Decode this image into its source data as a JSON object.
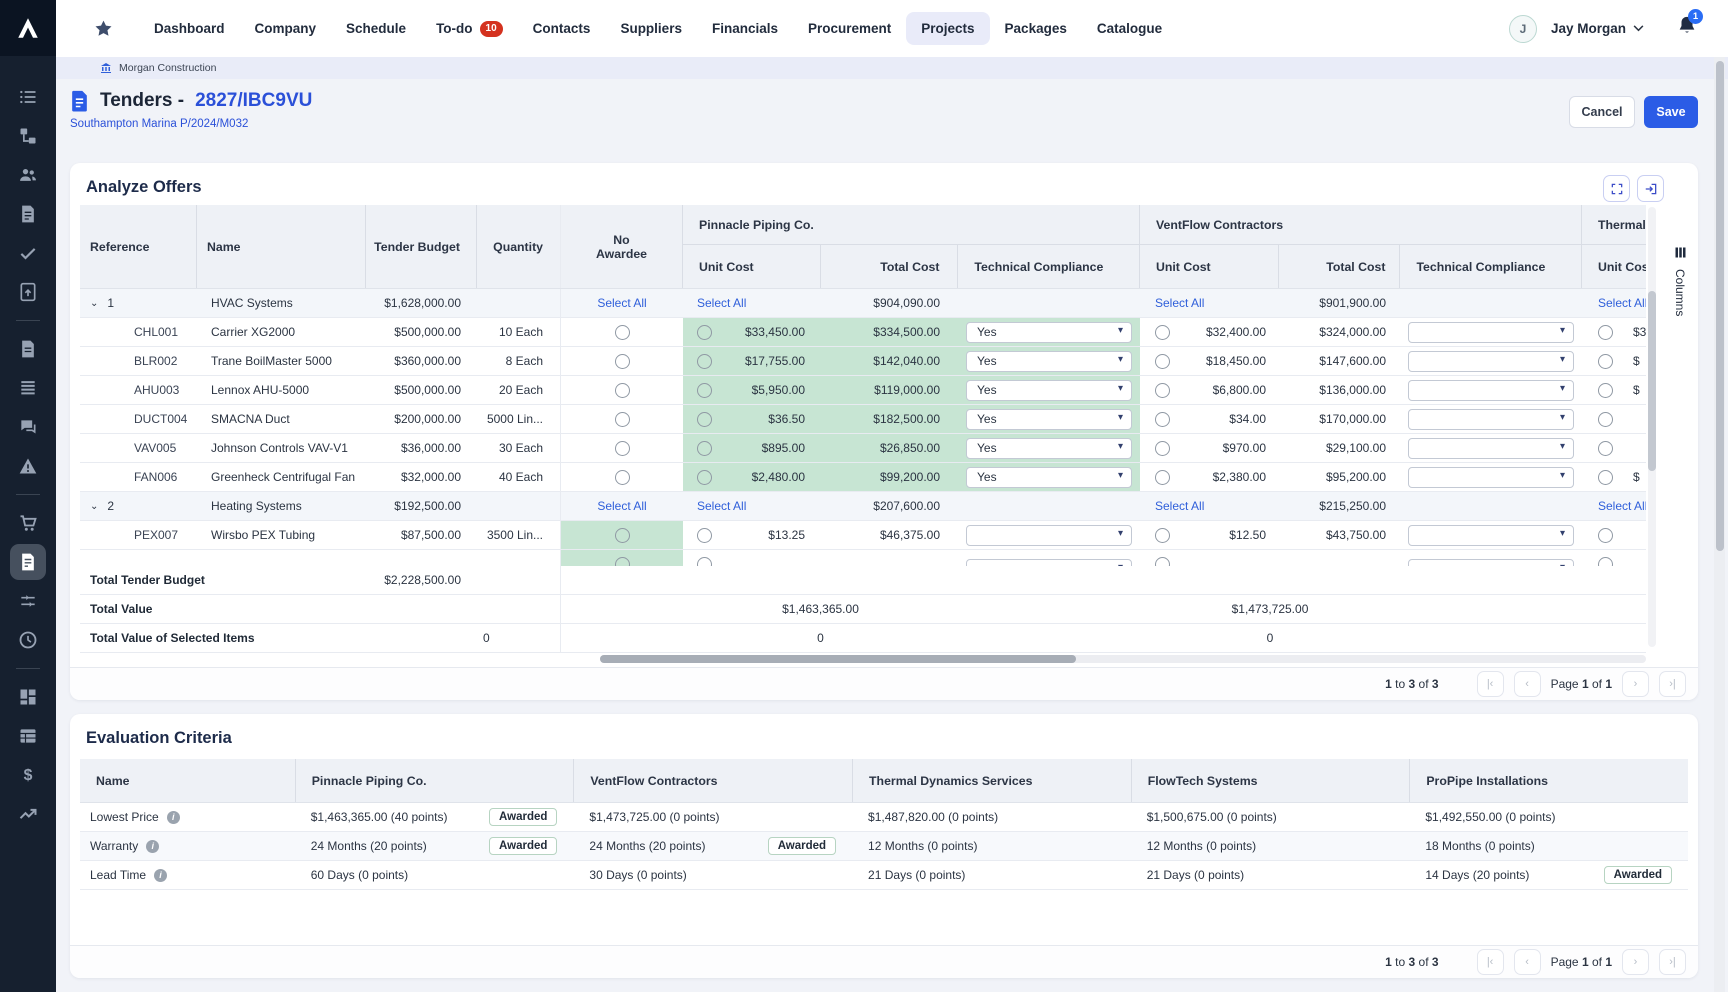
{
  "colors": {
    "accent_blue": "#2b5ce6",
    "link_blue": "#2f5fda",
    "highlight_green": "#c7e5d3",
    "badge_red": "#d4321f",
    "navy_sidebar": "#16202f"
  },
  "brand": {
    "logo_letter": "A"
  },
  "nav": {
    "items": [
      "Dashboard",
      "Company",
      "Schedule",
      "To-do",
      "Contacts",
      "Suppliers",
      "Financials",
      "Procurement",
      "Projects",
      "Packages",
      "Catalogue"
    ],
    "active_item": "Projects",
    "todo_badge": "10",
    "user_initial": "J",
    "user_name": "Jay Morgan",
    "notification_count": "1"
  },
  "sidebar": {
    "icons": [
      "list",
      "hierarchy",
      "users",
      "document",
      "check",
      "file-upload",
      "divider",
      "file",
      "menu",
      "chat",
      "warning",
      "divider",
      "cart",
      "tender-document",
      "sliders",
      "clock",
      "divider",
      "grid",
      "table",
      "dollar",
      "trend"
    ],
    "active_icon": "tender-document"
  },
  "breadcrumb": "Morgan Construction",
  "page_header": {
    "title_prefix": "Tenders - ",
    "title_code": "2827/IBC9VU",
    "subtitle_link": "Southampton Marina P/2024/M032",
    "cancel": "Cancel",
    "save": "Save"
  },
  "analyze": {
    "title": "Analyze Offers",
    "columns_tool": "Columns",
    "select_all": "Select All",
    "headers": {
      "reference": "Reference",
      "name": "Name",
      "budget": "Tender Budget",
      "quantity": "Quantity",
      "no_awardee_line1": "No",
      "no_awardee_line2": "Awardee",
      "unit": "Unit Cost",
      "total": "Total Cost",
      "compliance": "Technical Compliance"
    },
    "vendors": [
      "Pinnacle Piping Co.",
      "VentFlow Contractors",
      "Thermal Dynamics Services"
    ],
    "groups": [
      {
        "num": "1",
        "name": "HVAC Systems",
        "budget": "$1,628,000.00",
        "vendor_totals": [
          "$904,090.00",
          "$901,900.00"
        ],
        "items": [
          {
            "ref": "CHL001",
            "name": "Carrier XG2000",
            "budget": "$500,000.00",
            "qty": "10 Each",
            "offers": [
              {
                "unit": "$33,450.00",
                "total": "$334,500.00",
                "compliance": "Yes",
                "highlight": true
              },
              {
                "unit": "$32,400.00",
                "total": "$324,000.00",
                "compliance": ""
              },
              {
                "unit_fragment": "$3"
              }
            ]
          },
          {
            "ref": "BLR002",
            "name": "Trane BoilMaster 5000",
            "budget": "$360,000.00",
            "qty": "8 Each",
            "offers": [
              {
                "unit": "$17,755.00",
                "total": "$142,040.00",
                "compliance": "Yes",
                "highlight": true
              },
              {
                "unit": "$18,450.00",
                "total": "$147,600.00",
                "compliance": ""
              },
              {
                "unit_fragment": "$"
              }
            ]
          },
          {
            "ref": "AHU003",
            "name": "Lennox AHU-5000",
            "budget": "$500,000.00",
            "qty": "20 Each",
            "offers": [
              {
                "unit": "$5,950.00",
                "total": "$119,000.00",
                "compliance": "Yes",
                "highlight": true
              },
              {
                "unit": "$6,800.00",
                "total": "$136,000.00",
                "compliance": ""
              },
              {
                "unit_fragment": "$"
              }
            ]
          },
          {
            "ref": "DUCT004",
            "name": "SMACNA Duct",
            "budget": "$200,000.00",
            "qty": "5000 Lin...",
            "offers": [
              {
                "unit": "$36.50",
                "total": "$182,500.00",
                "compliance": "Yes",
                "highlight": true
              },
              {
                "unit": "$34.00",
                "total": "$170,000.00",
                "compliance": ""
              },
              {
                "unit_fragment": ""
              }
            ]
          },
          {
            "ref": "VAV005",
            "name": "Johnson Controls VAV-V1",
            "budget": "$36,000.00",
            "qty": "30 Each",
            "offers": [
              {
                "unit": "$895.00",
                "total": "$26,850.00",
                "compliance": "Yes",
                "highlight": true
              },
              {
                "unit": "$970.00",
                "total": "$29,100.00",
                "compliance": ""
              },
              {
                "unit_fragment": ""
              }
            ]
          },
          {
            "ref": "FAN006",
            "name": "Greenheck Centrifugal Fan",
            "budget": "$32,000.00",
            "qty": "40 Each",
            "offers": [
              {
                "unit": "$2,480.00",
                "total": "$99,200.00",
                "compliance": "Yes",
                "highlight": true
              },
              {
                "unit": "$2,380.00",
                "total": "$95,200.00",
                "compliance": ""
              },
              {
                "unit_fragment": "$"
              }
            ]
          }
        ]
      },
      {
        "num": "2",
        "name": "Heating Systems",
        "budget": "$192,500.00",
        "vendor_totals": [
          "$207,600.00",
          "$215,250.00"
        ],
        "items": [
          {
            "ref": "PEX007",
            "name": "Wirsbo PEX Tubing",
            "budget": "$87,500.00",
            "qty": "3500 Lin...",
            "no_awardee_highlight": true,
            "offers": [
              {
                "unit": "$13.25",
                "total": "$46,375.00",
                "compliance": ""
              },
              {
                "unit": "$12.50",
                "total": "$43,750.00",
                "compliance": ""
              },
              {
                "unit_fragment": ""
              }
            ]
          },
          {
            "partial": true,
            "no_awardee_highlight": true
          }
        ]
      }
    ],
    "summary": [
      {
        "label": "Total Tender Budget",
        "budget": "$2,228,500.00",
        "qty": "",
        "vendor_values": [
          "",
          ""
        ]
      },
      {
        "label": "Total Value",
        "budget": "",
        "qty": "",
        "vendor_values": [
          "$1,463,365.00",
          "$1,473,725.00"
        ]
      },
      {
        "label": "Total Value of Selected Items",
        "budget": "",
        "qty": "0",
        "vendor_values": [
          "0",
          "0"
        ]
      }
    ],
    "pagination": {
      "range_text": "1 to 3 of 3",
      "page_text": "Page 1 of 1"
    }
  },
  "evaluation": {
    "title": "Evaluation Criteria",
    "name_header": "Name",
    "vendors": [
      "Pinnacle Piping Co.",
      "VentFlow Contractors",
      "Thermal Dynamics Services",
      "FlowTech Systems",
      "ProPipe Installations"
    ],
    "awarded_label": "Awarded",
    "rows": [
      {
        "name": "Lowest Price",
        "cells": [
          {
            "text": "$1,463,365.00 (40 points)",
            "awarded": true
          },
          {
            "text": "$1,473,725.00 (0 points)",
            "awarded": false
          },
          {
            "text": "$1,487,820.00 (0 points)",
            "awarded": false
          },
          {
            "text": "$1,500,675.00 (0 points)",
            "awarded": false
          },
          {
            "text": "$1,492,550.00 (0 points)",
            "awarded": false
          }
        ]
      },
      {
        "name": "Warranty",
        "cells": [
          {
            "text": "24 Months (20 points)",
            "awarded": true
          },
          {
            "text": "24 Months (20 points)",
            "awarded": true
          },
          {
            "text": "12 Months (0 points)",
            "awarded": false
          },
          {
            "text": "12 Months (0 points)",
            "awarded": false
          },
          {
            "text": "18 Months (0 points)",
            "awarded": false
          }
        ]
      },
      {
        "name": "Lead Time",
        "cells": [
          {
            "text": "60 Days (0 points)",
            "awarded": false
          },
          {
            "text": "30 Days (0 points)",
            "awarded": false
          },
          {
            "text": "21 Days (0 points)",
            "awarded": false
          },
          {
            "text": "21 Days (0 points)",
            "awarded": false
          },
          {
            "text": "14 Days (20 points)",
            "awarded": true
          }
        ]
      }
    ],
    "pagination": {
      "range_text": "1 to 3 of 3",
      "page_text": "Page 1 of 1"
    }
  }
}
